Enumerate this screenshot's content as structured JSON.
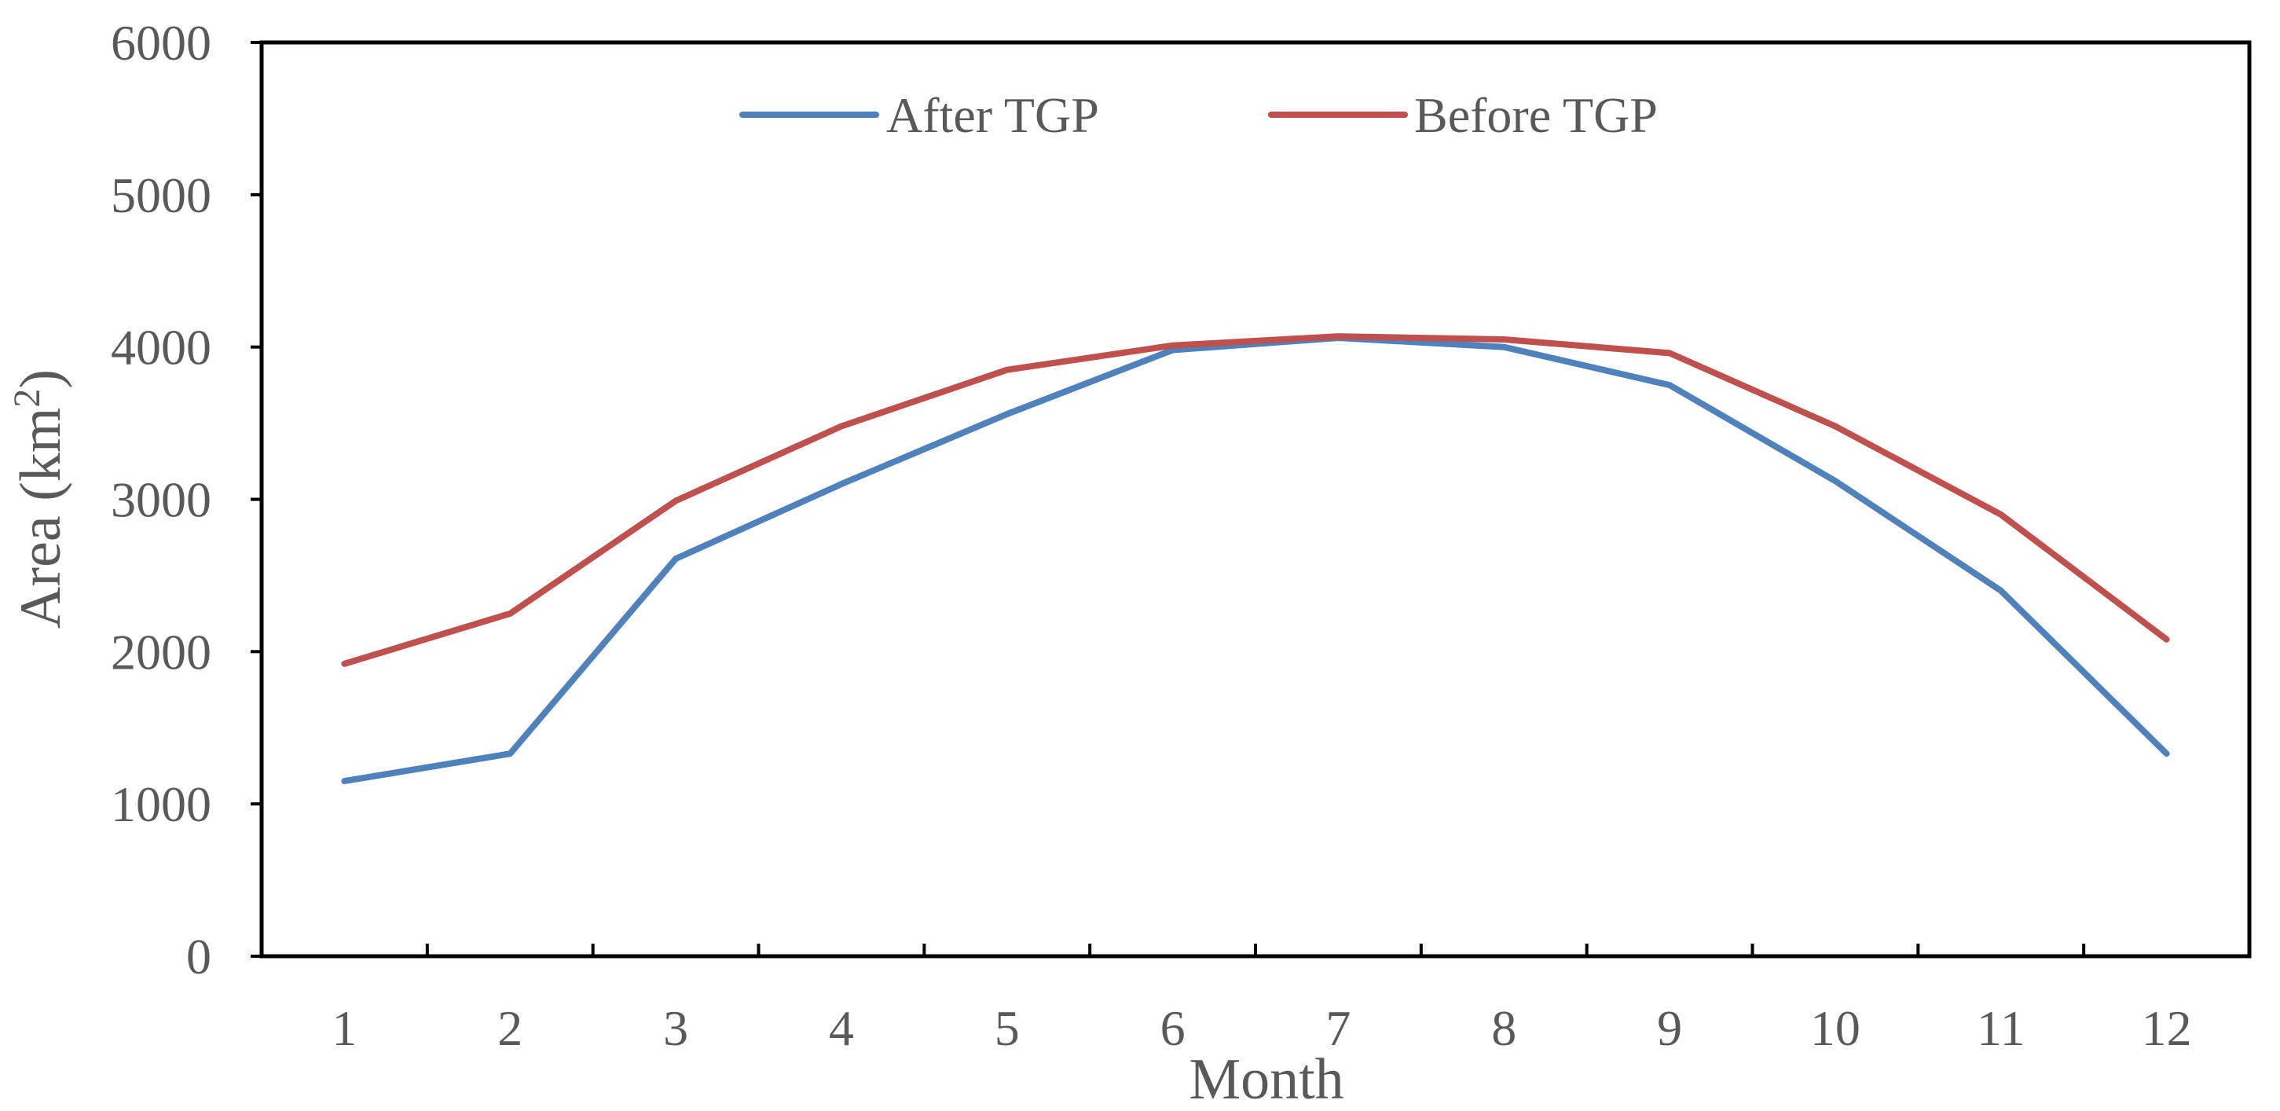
{
  "chart_data": {
    "type": "line",
    "title": "",
    "xlabel": "Month",
    "ylabel_main": "Area (km",
    "ylabel_sup": "2",
    "ylabel_close": ")",
    "categories": [
      "1",
      "2",
      "3",
      "4",
      "5",
      "6",
      "7",
      "8",
      "9",
      "10",
      "11",
      "12"
    ],
    "yticks": [
      "0",
      "1000",
      "2000",
      "3000",
      "4000",
      "5000",
      "6000"
    ],
    "ylim": [
      0,
      6000
    ],
    "grid": false,
    "legend_position": "top-center",
    "series": [
      {
        "name": "After TGP",
        "color": "#4F81BD",
        "values": [
          1150,
          1330,
          2610,
          3100,
          3560,
          3980,
          4060,
          4000,
          3750,
          3120,
          2400,
          1330
        ]
      },
      {
        "name": "Before TGP",
        "color": "#C0504D",
        "values": [
          1920,
          2250,
          2990,
          3480,
          3850,
          4010,
          4070,
          4050,
          3960,
          3480,
          2900,
          2080
        ]
      }
    ]
  }
}
